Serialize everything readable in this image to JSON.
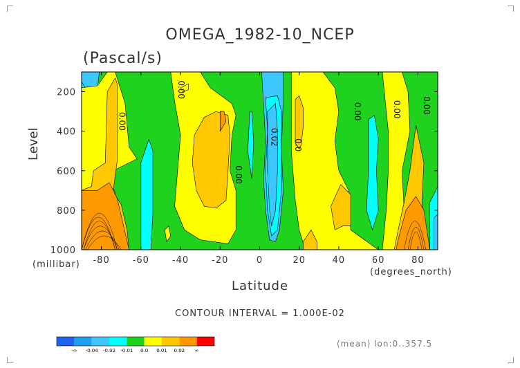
{
  "title": "OMEGA_1982-10_NCEP",
  "units": "(Pascal/s)",
  "chart_data": {
    "type": "heatmap",
    "subtype": "filled-contour",
    "xlabel": "Latitude",
    "x_units": "(degrees_north)",
    "ylabel": "Level",
    "y_units": "(millibar)",
    "xlim": [
      -90,
      90
    ],
    "ylim": [
      1000,
      100
    ],
    "x_ticks": [
      "-80",
      "-60",
      "-40",
      "-20",
      "0",
      "20",
      "40",
      "60",
      "80"
    ],
    "x_tick_values": [
      -80,
      -60,
      -40,
      -20,
      0,
      20,
      40,
      60,
      80
    ],
    "y_ticks": [
      "200",
      "400",
      "600",
      "800",
      "1000"
    ],
    "y_tick_values": [
      200,
      400,
      600,
      800,
      1000
    ],
    "contour_interval_text": "CONTOUR INTERVAL = 1.000E-02",
    "contour_labels": [
      {
        "text": "0.00",
        "lat": -71,
        "level": 350
      },
      {
        "text": "0.00",
        "lat": -41,
        "level": 190
      },
      {
        "text": "0.00",
        "lat": -12,
        "level": 620
      },
      {
        "text": "0.02",
        "lat": 6,
        "level": 430
      },
      {
        "text": "0.0",
        "lat": 18,
        "level": 470
      },
      {
        "text": "0.00",
        "lat": 48,
        "level": 300
      },
      {
        "text": "0.00",
        "lat": 68,
        "level": 290
      },
      {
        "text": "0.00",
        "lat": 83,
        "level": 270
      }
    ],
    "regions": [
      {
        "band": 2,
        "pts": [
          [
            -90,
            100
          ],
          [
            -81,
            100
          ],
          [
            -83,
            260
          ],
          [
            -84,
            600
          ],
          [
            -85,
            700
          ],
          [
            -90,
            700
          ]
        ]
      },
      {
        "band": 3,
        "pts": [
          [
            -90,
            150
          ],
          [
            -87,
            200
          ],
          [
            -86,
            400
          ],
          [
            -86,
            550
          ],
          [
            -87,
            620
          ],
          [
            -90,
            640
          ]
        ]
      },
      {
        "band": 6,
        "pts": [
          [
            -90,
            690
          ],
          [
            -86,
            680
          ],
          [
            -80,
            660
          ],
          [
            -76,
            680
          ],
          [
            -70,
            770
          ],
          [
            -67,
            900
          ],
          [
            -66,
            1000
          ],
          [
            -90,
            1000
          ]
        ]
      },
      {
        "band": 5,
        "pts": [
          [
            -90,
            720
          ],
          [
            -80,
            710
          ],
          [
            -76,
            750
          ],
          [
            -72,
            850
          ],
          [
            -69,
            1000
          ],
          [
            -90,
            1000
          ]
        ]
      },
      {
        "band": 6,
        "pts": [
          [
            -90,
            700
          ],
          [
            -81,
            725
          ],
          [
            -76,
            650
          ],
          [
            -73,
            710
          ],
          [
            -72,
            800
          ],
          [
            -70,
            900
          ],
          [
            -67,
            1000
          ],
          [
            -90,
            1000
          ]
        ]
      },
      {
        "band": 5,
        "pts": [
          [
            -90,
            180
          ],
          [
            -82,
            170
          ],
          [
            -77,
            100
          ],
          [
            -73,
            100
          ],
          [
            -68,
            260
          ],
          [
            -66,
            480
          ],
          [
            -62,
            540
          ],
          [
            -78,
            620
          ],
          [
            -76,
            700
          ],
          [
            -85,
            680
          ],
          [
            -90,
            700
          ]
        ]
      },
      {
        "band": 6,
        "pts": [
          [
            -77,
            200
          ],
          [
            -73,
            130
          ],
          [
            -72,
            160
          ],
          [
            -72,
            400
          ],
          [
            -72,
            550
          ],
          [
            -74,
            700
          ],
          [
            -73,
            900
          ],
          [
            -71,
            1000
          ],
          [
            -90,
            1000
          ],
          [
            -90,
            700
          ],
          [
            -85,
            680
          ],
          [
            -84,
            600
          ],
          [
            -78,
            560
          ]
        ]
      },
      {
        "band": 7,
        "pts": [
          [
            -90,
            700
          ],
          [
            -82,
            700
          ],
          [
            -76,
            660
          ],
          [
            -72,
            740
          ],
          [
            -69,
            870
          ],
          [
            -66,
            1000
          ],
          [
            -90,
            1000
          ]
        ]
      },
      {
        "band": 3,
        "pts": [
          [
            -60,
            560
          ],
          [
            -56,
            440
          ],
          [
            -54,
            500
          ],
          [
            -54,
            820
          ],
          [
            -55,
            1000
          ],
          [
            -60,
            1000
          ]
        ]
      },
      {
        "band": 5,
        "pts": [
          [
            -48,
            900
          ],
          [
            -46,
            880
          ],
          [
            -45,
            930
          ],
          [
            -47,
            960
          ]
        ]
      },
      {
        "band": 5,
        "pts": [
          [
            -45,
            100
          ],
          [
            -30,
            100
          ],
          [
            -25,
            180
          ],
          [
            -14,
            260
          ],
          [
            -12,
            320
          ],
          [
            -14,
            420
          ],
          [
            -15,
            600
          ],
          [
            -12,
            700
          ],
          [
            -12,
            900
          ],
          [
            -16,
            970
          ],
          [
            -30,
            950
          ],
          [
            -38,
            900
          ],
          [
            -43,
            780
          ],
          [
            -40,
            420
          ],
          [
            -43,
            250
          ]
        ]
      },
      {
        "band": 6,
        "pts": [
          [
            -33,
            420
          ],
          [
            -28,
            330
          ],
          [
            -22,
            300
          ],
          [
            -16,
            320
          ],
          [
            -15,
            430
          ],
          [
            -16,
            600
          ],
          [
            -17,
            750
          ],
          [
            -22,
            790
          ],
          [
            -28,
            780
          ],
          [
            -32,
            700
          ],
          [
            -34,
            560
          ]
        ]
      },
      {
        "band": 7,
        "pts": [
          [
            -20,
            300
          ],
          [
            -18,
            300
          ],
          [
            -17,
            350
          ],
          [
            -20,
            400
          ]
        ]
      },
      {
        "band": 5,
        "pts": [
          [
            -40,
            180
          ],
          [
            -36,
            160
          ],
          [
            -36,
            190
          ],
          [
            -39,
            200
          ]
        ]
      },
      {
        "band": 3,
        "pts": [
          [
            -5,
            300
          ],
          [
            -4,
            300
          ],
          [
            -3,
            460
          ],
          [
            -4,
            640
          ],
          [
            -6,
            500
          ]
        ]
      },
      {
        "band": 2,
        "pts": [
          [
            1,
            100
          ],
          [
            12,
            100
          ],
          [
            12,
            220
          ],
          [
            11,
            500
          ],
          [
            12,
            700
          ],
          [
            10,
            900
          ],
          [
            8,
            960
          ],
          [
            5,
            950
          ],
          [
            3,
            800
          ],
          [
            2,
            650
          ],
          [
            3,
            450
          ]
        ]
      },
      {
        "band": 3,
        "pts": [
          [
            3,
            230
          ],
          [
            9,
            220
          ],
          [
            11,
            300
          ],
          [
            11,
            500
          ],
          [
            11,
            700
          ],
          [
            9,
            900
          ],
          [
            6,
            930
          ],
          [
            4,
            800
          ],
          [
            3,
            600
          ],
          [
            4,
            400
          ]
        ]
      },
      {
        "band": 2,
        "pts": [
          [
            4,
            300
          ],
          [
            8,
            260
          ],
          [
            9,
            400
          ],
          [
            9,
            600
          ],
          [
            8,
            800
          ],
          [
            6,
            880
          ],
          [
            5,
            800
          ],
          [
            4,
            600
          ]
        ]
      },
      {
        "band": 5,
        "pts": [
          [
            16,
            100
          ],
          [
            32,
            100
          ],
          [
            38,
            180
          ],
          [
            40,
            300
          ],
          [
            38,
            450
          ],
          [
            40,
            600
          ],
          [
            45,
            700
          ],
          [
            46,
            900
          ],
          [
            53,
            950
          ],
          [
            60,
            1000
          ],
          [
            23,
            1000
          ],
          [
            20,
            900
          ],
          [
            18,
            750
          ],
          [
            16,
            500
          ],
          [
            16,
            300
          ]
        ]
      },
      {
        "band": 6,
        "pts": [
          [
            18,
            240
          ],
          [
            20,
            220
          ],
          [
            22,
            280
          ],
          [
            22,
            380
          ],
          [
            21,
            470
          ],
          [
            20,
            490
          ],
          [
            18,
            460
          ]
        ]
      },
      {
        "band": 6,
        "pts": [
          [
            36,
            780
          ],
          [
            41,
            670
          ],
          [
            46,
            720
          ],
          [
            46,
            880
          ],
          [
            42,
            880
          ],
          [
            38,
            900
          ]
        ]
      },
      {
        "band": 6,
        "pts": [
          [
            22,
            960
          ],
          [
            26,
            900
          ],
          [
            29,
            960
          ],
          [
            29,
            1000
          ],
          [
            22,
            1000
          ]
        ]
      },
      {
        "band": 3,
        "pts": [
          [
            55,
            340
          ],
          [
            58,
            320
          ],
          [
            60,
            440
          ],
          [
            59,
            600
          ],
          [
            60,
            800
          ],
          [
            57,
            900
          ],
          [
            54,
            800
          ],
          [
            55,
            600
          ]
        ]
      },
      {
        "band": 5,
        "pts": [
          [
            62,
            100
          ],
          [
            72,
            100
          ],
          [
            75,
            200
          ],
          [
            76,
            400
          ],
          [
            72,
            600
          ],
          [
            73,
            800
          ],
          [
            70,
            1000
          ],
          [
            62,
            1000
          ],
          [
            64,
            800
          ],
          [
            65,
            600
          ],
          [
            65,
            400
          ]
        ]
      },
      {
        "band": 6,
        "pts": [
          [
            76,
            600
          ],
          [
            79,
            370
          ],
          [
            83,
            560
          ],
          [
            82,
            760
          ],
          [
            84,
            900
          ],
          [
            86,
            1000
          ],
          [
            68,
            1000
          ],
          [
            70,
            900
          ],
          [
            73,
            760
          ]
        ]
      },
      {
        "band": 7,
        "pts": [
          [
            70,
            950
          ],
          [
            74,
            800
          ],
          [
            79,
            730
          ],
          [
            83,
            800
          ],
          [
            86,
            1000
          ],
          [
            69,
            1000
          ]
        ]
      },
      {
        "band": 3,
        "pts": [
          [
            86,
            760
          ],
          [
            90,
            680
          ],
          [
            90,
            1000
          ],
          [
            86,
            1000
          ]
        ]
      },
      {
        "band": 2,
        "pts": [
          [
            88,
            840
          ],
          [
            90,
            820
          ],
          [
            90,
            1000
          ],
          [
            88,
            1000
          ]
        ]
      }
    ],
    "colorbar": {
      "colors": [
        "#1e63f0",
        "#1e9ff0",
        "#3cc8ff",
        "#00ffff",
        "#1ed21e",
        "#ffff00",
        "#ffc800",
        "#ff9900",
        "#ff0000"
      ],
      "labels": [
        "-∞",
        "-0.04",
        "-0.02",
        "-0.01",
        "0.0",
        "0.01",
        "0.02",
        "∞"
      ]
    }
  },
  "footer": {
    "mean_label": "(mean) lon:0..357.5"
  }
}
